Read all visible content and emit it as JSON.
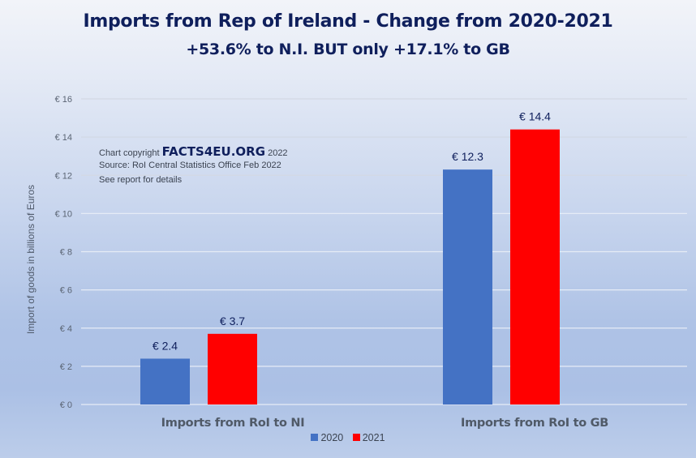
{
  "chart_data": {
    "type": "bar",
    "title": "Imports from Rep of Ireland - Change from 2020-2021",
    "subtitle": "+53.6% to N.I. BUT only +17.1% to GB",
    "xlabel": "",
    "ylabel": "Import of goods in billions of Euros",
    "ylim": [
      0,
      16
    ],
    "yticks": [
      0,
      2,
      4,
      6,
      8,
      10,
      12,
      14,
      16
    ],
    "ytick_labels": [
      "€ 0",
      "€ 2",
      "€ 4",
      "€ 6",
      "€ 8",
      "€ 10",
      "€ 12",
      "€ 14",
      "€ 16"
    ],
    "grid": true,
    "categories": [
      "Imports from RoI to NI",
      "Imports from RoI to GB"
    ],
    "series": [
      {
        "name": "2020",
        "color": "#4472c4",
        "values": [
          2.4,
          12.3
        ],
        "labels": [
          "€ 2.4",
          "€ 12.3"
        ]
      },
      {
        "name": "2021",
        "color": "#ff0000",
        "values": [
          3.7,
          14.4
        ],
        "labels": [
          "€ 3.7",
          "€ 14.4"
        ]
      }
    ],
    "legend_position": "bottom",
    "annotation": {
      "line1_prefix": "Chart copyright",
      "line1_brand": "FACTS4EU.ORG",
      "line1_suffix": "2022",
      "line2": "Source: RoI Central Statistics Office Feb 2022",
      "line3": "See report for details"
    }
  }
}
